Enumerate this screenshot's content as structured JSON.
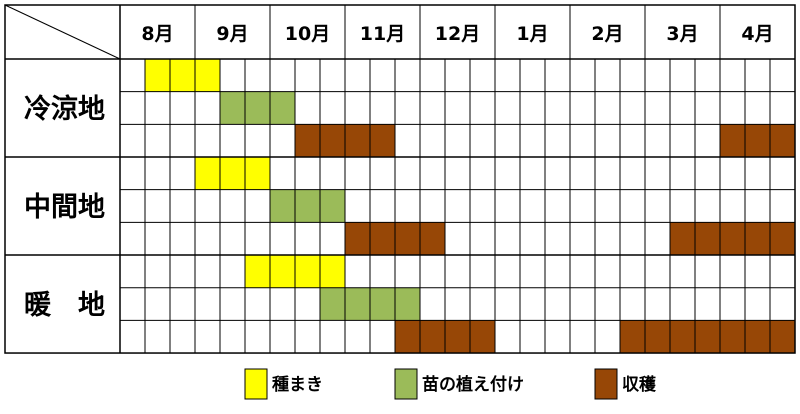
{
  "chart_data": {
    "type": "table",
    "title": "",
    "months": [
      "8月",
      "9月",
      "10月",
      "11月",
      "12月",
      "1月",
      "2月",
      "3月",
      "4月"
    ],
    "columns_per_month": 3,
    "regions": [
      {
        "name": "冷涼地",
        "rows": [
          {
            "type": "sowing",
            "cells": [
              {
                "start": 1,
                "end": 4
              }
            ]
          },
          {
            "type": "planting",
            "cells": [
              {
                "start": 4,
                "end": 7
              }
            ]
          },
          {
            "type": "harvest",
            "cells": [
              {
                "start": 7,
                "end": 11
              },
              {
                "start": 24,
                "end": 27
              }
            ]
          }
        ]
      },
      {
        "name": "中間地",
        "rows": [
          {
            "type": "sowing",
            "cells": [
              {
                "start": 3,
                "end": 6
              }
            ]
          },
          {
            "type": "planting",
            "cells": [
              {
                "start": 6,
                "end": 9
              }
            ]
          },
          {
            "type": "harvest",
            "cells": [
              {
                "start": 9,
                "end": 13
              },
              {
                "start": 22,
                "end": 27
              }
            ]
          }
        ]
      },
      {
        "name": "暖　地",
        "rows": [
          {
            "type": "sowing",
            "cells": [
              {
                "start": 5,
                "end": 9
              }
            ]
          },
          {
            "type": "planting",
            "cells": [
              {
                "start": 8,
                "end": 12
              }
            ]
          },
          {
            "type": "harvest",
            "cells": [
              {
                "start": 11,
                "end": 15
              },
              {
                "start": 20,
                "end": 27
              }
            ]
          }
        ]
      }
    ],
    "legend": [
      {
        "key": "sowing",
        "label": "種まき",
        "color": "#ffff00"
      },
      {
        "key": "planting",
        "label": "苗の植え付け",
        "color": "#9bbb59"
      },
      {
        "key": "harvest",
        "label": "収穫",
        "color": "#974706"
      }
    ]
  }
}
